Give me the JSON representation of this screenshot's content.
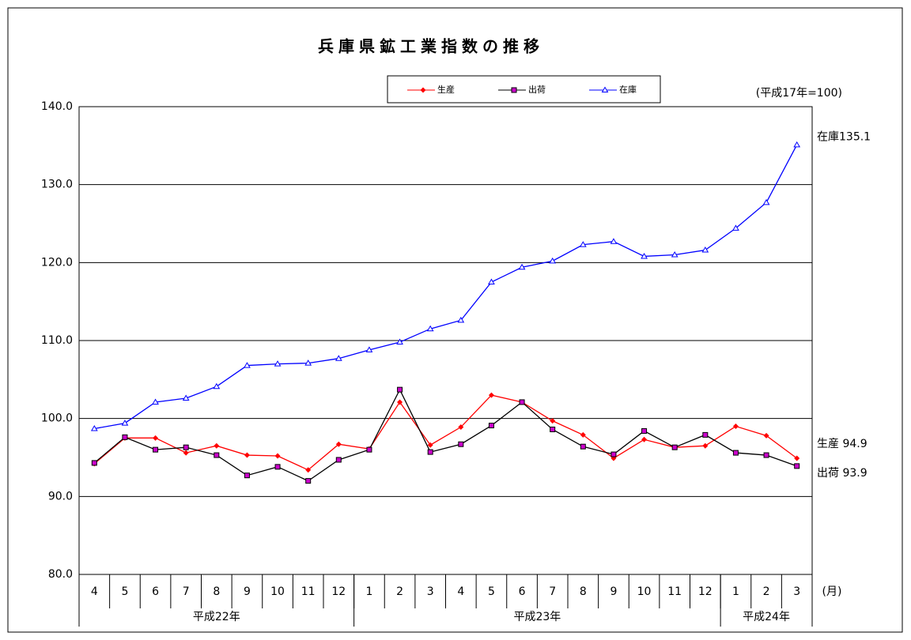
{
  "chart_data": {
    "type": "line",
    "title": "兵庫県鉱工業指数の推移",
    "unit_note": "(平成17年=100)",
    "x_unit": "(月)",
    "categories": [
      "4",
      "5",
      "6",
      "7",
      "8",
      "9",
      "10",
      "11",
      "12",
      "1",
      "2",
      "3",
      "4",
      "5",
      "6",
      "7",
      "8",
      "9",
      "10",
      "11",
      "12",
      "1",
      "2",
      "3"
    ],
    "category_groups": [
      "平成22年",
      "平成23年",
      "平成24年"
    ],
    "ylim": [
      80,
      140
    ],
    "yticks": [
      {
        "value": 80,
        "label": "80.0"
      },
      {
        "value": 90,
        "label": "90.0"
      },
      {
        "value": 100,
        "label": "100.0"
      },
      {
        "value": 110,
        "label": "110.0"
      },
      {
        "value": 120,
        "label": "120.0"
      },
      {
        "value": 130,
        "label": "130.0"
      },
      {
        "value": 140,
        "label": "140.0"
      }
    ],
    "grid": true,
    "legend": "top",
    "series": [
      {
        "name": "生産",
        "color": "#ff0000",
        "marker": "diamond",
        "end_label": "生産 94.9",
        "values": [
          94.2,
          97.5,
          97.5,
          95.6,
          96.5,
          95.3,
          95.2,
          93.4,
          96.7,
          96.1,
          102.1,
          96.6,
          98.9,
          103.0,
          102.1,
          99.7,
          97.9,
          94.9,
          97.3,
          96.3,
          96.5,
          99.0,
          97.8,
          94.9
        ]
      },
      {
        "name": "出荷",
        "color": "#000000",
        "marker_fill": "#cc00cc",
        "marker": "square",
        "end_label": "出荷 93.9",
        "values": [
          94.3,
          97.6,
          96.0,
          96.3,
          95.3,
          92.7,
          93.8,
          92.0,
          94.7,
          96.0,
          103.7,
          95.7,
          96.7,
          99.1,
          102.1,
          98.6,
          96.4,
          95.4,
          98.4,
          96.3,
          97.9,
          95.6,
          95.3,
          93.9
        ]
      },
      {
        "name": "在庫",
        "color": "#0000ff",
        "marker": "triangle",
        "end_label": "在庫135.1",
        "values": [
          98.7,
          99.4,
          102.1,
          102.6,
          104.1,
          106.8,
          107.0,
          107.1,
          107.7,
          108.8,
          109.8,
          111.5,
          112.6,
          117.5,
          119.4,
          120.2,
          122.3,
          122.7,
          120.8,
          121.0,
          121.6,
          124.4,
          127.7,
          135.1
        ]
      }
    ]
  }
}
